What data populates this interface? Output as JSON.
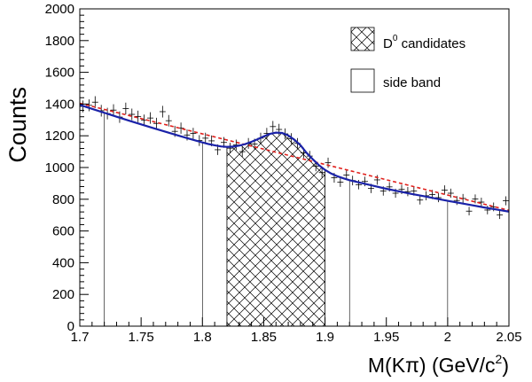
{
  "chart_data": {
    "type": "histogram",
    "xlabel_main": "M(Kπ) (GeV/c",
    "xlabel_sup": "2",
    "xlabel_tail": ")",
    "ylabel": "Counts",
    "xlim": [
      1.7,
      2.05
    ],
    "ylim": [
      0,
      2000
    ],
    "x_ticks": [
      1.7,
      1.75,
      1.8,
      1.85,
      1.9,
      1.95,
      2.0,
      2.05
    ],
    "x_tick_labels": [
      "1.7",
      "1.75",
      "1.8",
      "1.85",
      "1.9",
      "1.95",
      "2",
      "2.05"
    ],
    "y_ticks": [
      0,
      200,
      400,
      600,
      800,
      1000,
      1200,
      1400,
      1600,
      1800,
      2000
    ],
    "y_tick_labels": [
      "0",
      "200",
      "400",
      "600",
      "800",
      "1000",
      "1200",
      "1400",
      "1600",
      "1800",
      "2000"
    ],
    "grid": false,
    "legend_position": "top-right",
    "legend": [
      {
        "label_main": "D",
        "label_sup": "0",
        "label_tail": " candidates",
        "style": "hatched"
      },
      {
        "label_main": "side band",
        "label_sup": "",
        "label_tail": "",
        "style": "open-box"
      }
    ],
    "signal_window": [
      1.82,
      1.9
    ],
    "sideband_lines": [
      1.72,
      1.8,
      1.92,
      2.0
    ],
    "bin_width": 0.005,
    "data_points": {
      "x": [
        1.7025,
        1.7075,
        1.7125,
        1.7175,
        1.7225,
        1.7275,
        1.7325,
        1.7375,
        1.7425,
        1.7475,
        1.7525,
        1.7575,
        1.7625,
        1.7675,
        1.7725,
        1.7775,
        1.7825,
        1.7875,
        1.7925,
        1.7975,
        1.8025,
        1.8075,
        1.8125,
        1.8175,
        1.8225,
        1.8275,
        1.8325,
        1.8375,
        1.8425,
        1.8475,
        1.8525,
        1.8575,
        1.8625,
        1.8675,
        1.8725,
        1.8775,
        1.8825,
        1.8875,
        1.8925,
        1.8975,
        1.9025,
        1.9075,
        1.9125,
        1.9175,
        1.9225,
        1.9275,
        1.9325,
        1.9375,
        1.9425,
        1.9475,
        1.9525,
        1.9575,
        1.9625,
        1.9675,
        1.9725,
        1.9775,
        1.9825,
        1.9875,
        1.9925,
        1.9975,
        2.0025,
        2.0075,
        2.0125,
        2.0175,
        2.0225,
        2.0275,
        2.0325,
        2.0375,
        2.0425,
        2.0475
      ],
      "y": [
        1385,
        1392,
        1412,
        1358,
        1340,
        1362,
        1318,
        1372,
        1335,
        1322,
        1298,
        1312,
        1278,
        1352,
        1295,
        1228,
        1248,
        1205,
        1215,
        1170,
        1185,
        1168,
        1112,
        1158,
        1122,
        1142,
        1100,
        1152,
        1148,
        1185,
        1215,
        1258,
        1240,
        1212,
        1182,
        1152,
        1092,
        1072,
        1008,
        968,
        1030,
        935,
        908,
        952,
        918,
        892,
        912,
        868,
        922,
        852,
        878,
        838,
        862,
        848,
        852,
        795,
        822,
        830,
        810,
        858,
        838,
        792,
        805,
        725,
        802,
        782,
        732,
        752,
        702,
        790
      ]
    },
    "fit_curve": {
      "x": [
        1.7,
        1.71,
        1.72,
        1.73,
        1.74,
        1.75,
        1.76,
        1.77,
        1.78,
        1.79,
        1.8,
        1.805,
        1.81,
        1.815,
        1.82,
        1.825,
        1.83,
        1.835,
        1.84,
        1.845,
        1.85,
        1.855,
        1.86,
        1.865,
        1.87,
        1.875,
        1.88,
        1.885,
        1.89,
        1.895,
        1.9,
        1.905,
        1.91,
        1.915,
        1.92,
        1.93,
        1.94,
        1.95,
        1.96,
        1.97,
        1.98,
        1.99,
        2.0,
        2.01,
        2.02,
        2.03,
        2.04,
        2.05
      ],
      "y": [
        1395,
        1370,
        1345,
        1320,
        1296,
        1272,
        1248,
        1225,
        1202,
        1180,
        1158,
        1148,
        1140,
        1133,
        1130,
        1132,
        1138,
        1148,
        1162,
        1178,
        1196,
        1212,
        1220,
        1218,
        1202,
        1175,
        1140,
        1092,
        1052,
        1015,
        985,
        962,
        945,
        932,
        920,
        902,
        884,
        866,
        850,
        834,
        820,
        805,
        790,
        776,
        762,
        748,
        735,
        722
      ]
    },
    "background_line": {
      "x": [
        1.7,
        2.05
      ],
      "y": [
        1405,
        730
      ]
    }
  }
}
